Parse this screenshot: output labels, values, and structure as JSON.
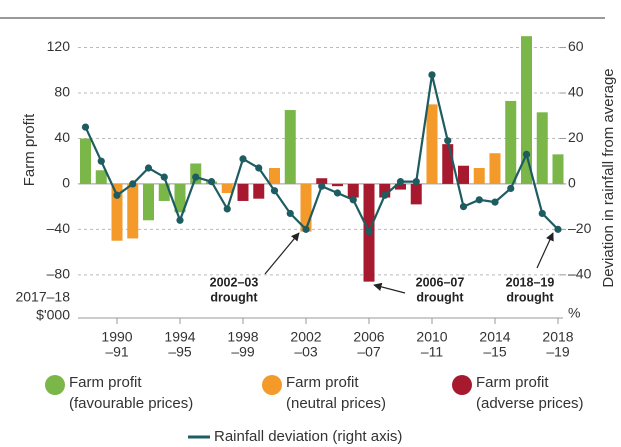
{
  "chart_data": {
    "type": "bar",
    "y_label": "Farm profit",
    "y2_label": "Deviation in rainfall from average",
    "y_unit": [
      "2017–18",
      "$'000"
    ],
    "y2_unit": "%",
    "categories": [
      null,
      null,
      [
        "1990",
        "–91"
      ],
      null,
      null,
      null,
      [
        "1994",
        "–95"
      ],
      null,
      null,
      null,
      [
        "1998",
        "–99"
      ],
      null,
      null,
      null,
      [
        "2002",
        "–03"
      ],
      null,
      null,
      null,
      [
        "2006",
        "–07"
      ],
      null,
      null,
      null,
      [
        "2010",
        "–11"
      ],
      null,
      null,
      null,
      [
        "2014",
        "–15"
      ],
      null,
      null,
      null,
      [
        "2018",
        "–19"
      ]
    ],
    "ylim": [
      -118,
      146
    ],
    "yticks": [
      {
        "value": -80,
        "label": "–80"
      },
      {
        "value": -40,
        "label": "–40"
      },
      0,
      40,
      80,
      120
    ],
    "y2lim": [
      -59,
      73
    ],
    "y2ticks": [
      {
        "value": -40,
        "label": "–40"
      },
      {
        "value": -20,
        "label": "–20"
      },
      0,
      20,
      40,
      60
    ],
    "grid": true,
    "series": [
      {
        "name": [
          "Farm profit",
          "(favourable prices)"
        ],
        "color": "#7ab648",
        "type": "bar",
        "values": [
          40,
          12,
          null,
          null,
          -32,
          -15,
          -25,
          18,
          2,
          null,
          null,
          null,
          null,
          65,
          null,
          null,
          null,
          null,
          null,
          null,
          null,
          null,
          null,
          null,
          null,
          null,
          null,
          73,
          130,
          63,
          26
        ]
      },
      {
        "name": [
          "Farm profit",
          "(neutral prices)"
        ],
        "color": "#f39a2b",
        "type": "bar",
        "values": [
          null,
          null,
          -50,
          -48,
          null,
          null,
          null,
          null,
          null,
          -8,
          null,
          null,
          14,
          null,
          -42,
          null,
          null,
          null,
          null,
          null,
          null,
          null,
          70,
          null,
          null,
          14,
          27,
          null,
          null,
          null,
          null
        ]
      },
      {
        "name": [
          "Farm profit",
          "(adverse prices)"
        ],
        "color": "#a6192e",
        "type": "bar",
        "values": [
          null,
          null,
          null,
          null,
          null,
          null,
          null,
          null,
          null,
          null,
          -15,
          -13,
          null,
          null,
          null,
          5,
          -2,
          -12,
          -86,
          -12,
          -5,
          -18,
          null,
          35,
          16,
          null,
          null,
          null,
          null,
          null,
          null
        ]
      },
      {
        "name": "Rainfall deviation (right axis)",
        "color": "#1d5c60",
        "type": "line",
        "axis": "y2",
        "values": [
          25,
          10,
          -5,
          0,
          7,
          3,
          -16,
          3,
          1,
          -11,
          11,
          7,
          -3,
          -13,
          -20,
          -1,
          -4,
          -7,
          -21,
          -5,
          1,
          1,
          48,
          19,
          -10,
          -7,
          -8,
          -2,
          13,
          -13,
          -20
        ]
      }
    ],
    "annotations": [
      {
        "text": [
          "2002–03",
          "drought"
        ]
      },
      {
        "text": [
          "2006–07",
          "drought"
        ]
      },
      {
        "text": [
          "2018–19",
          "drought"
        ]
      }
    ]
  }
}
